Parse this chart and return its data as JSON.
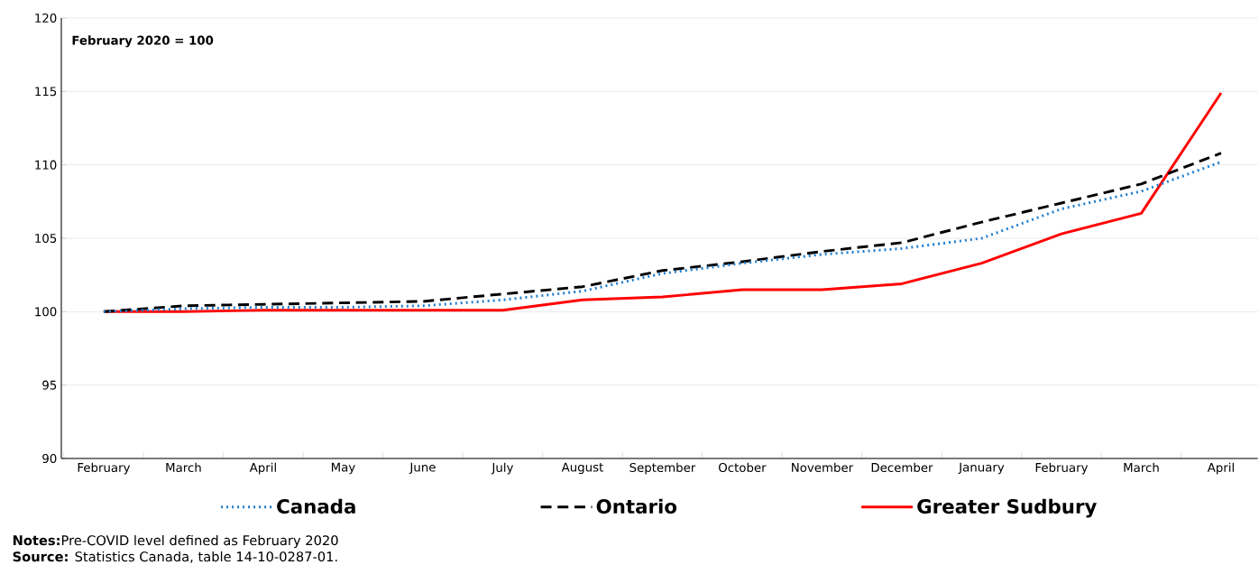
{
  "chart_data": {
    "type": "line",
    "categories": [
      "February",
      "March",
      "April",
      "May",
      "June",
      "July",
      "August",
      "September",
      "October",
      "November",
      "December",
      "January",
      "February",
      "March",
      "April"
    ],
    "series": [
      {
        "name": "Canada",
        "color": "#1f7fd0",
        "line_style": "dotted",
        "values": [
          100,
          100.2,
          100.3,
          100.3,
          100.4,
          100.8,
          101.4,
          102.6,
          103.3,
          103.9,
          104.3,
          105.0,
          107.0,
          108.2,
          110.2
        ]
      },
      {
        "name": "Ontario",
        "color": "#000000",
        "line_style": "dashed",
        "values": [
          100,
          100.4,
          100.5,
          100.6,
          100.7,
          101.2,
          101.7,
          102.8,
          103.4,
          104.1,
          104.7,
          106.1,
          107.4,
          108.7,
          110.8
        ]
      },
      {
        "name": "Greater Sudbury",
        "color": "#ff0000",
        "line_style": "solid",
        "values": [
          100,
          100,
          100.1,
          100.1,
          100.1,
          100.1,
          100.8,
          101.0,
          101.5,
          101.5,
          101.9,
          103.3,
          105.3,
          106.7,
          114.9
        ]
      }
    ],
    "ylim": [
      90,
      120
    ],
    "yticks": [
      90,
      95,
      100,
      105,
      110,
      115,
      120
    ],
    "grid": "y",
    "legend": "bottom",
    "marker": "none",
    "annotations": [
      "**February 2020 = 100**",
      "**Notes:**Pre-COVID level defined as February 2020",
      "**Source:** Statistics Canada, table 14-10-0287-01."
    ]
  }
}
